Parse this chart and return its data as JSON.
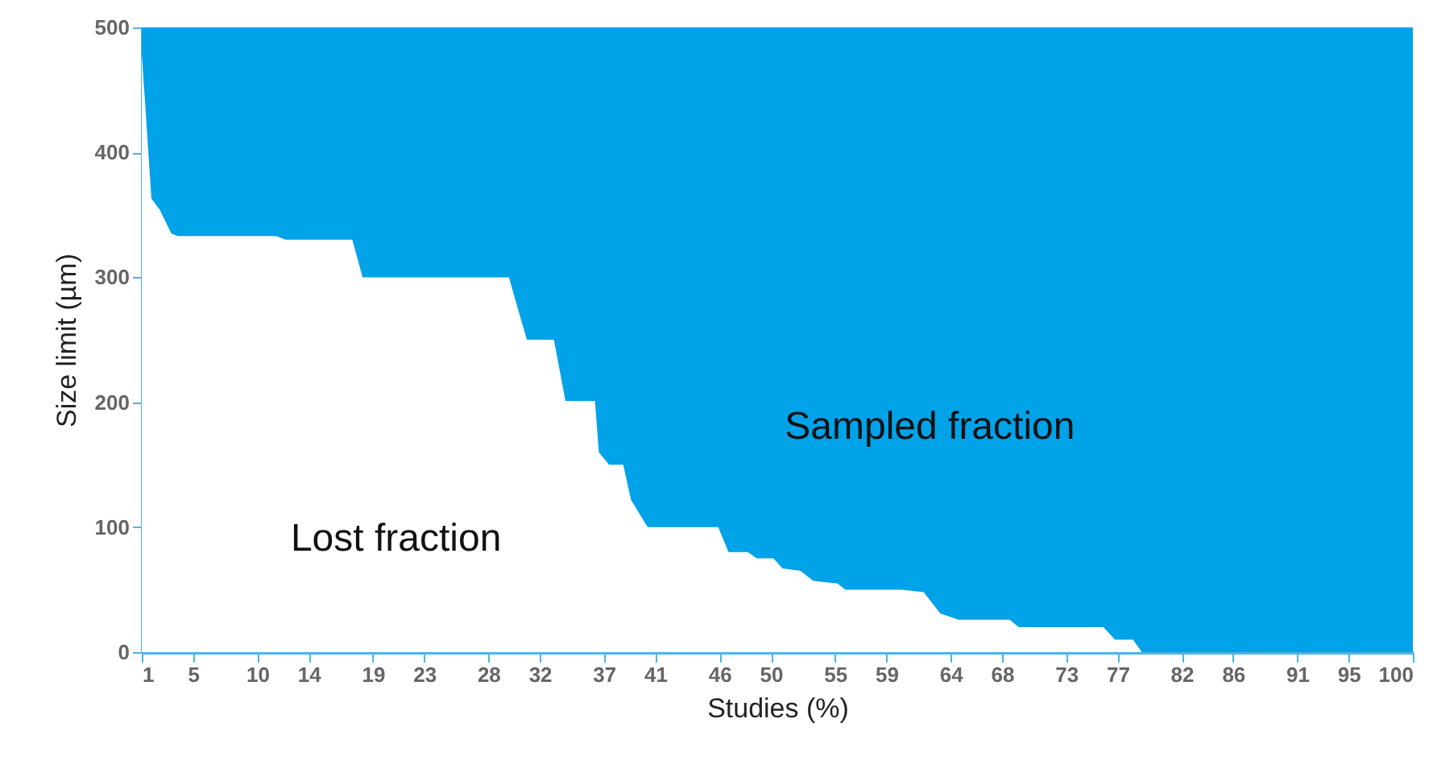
{
  "chart_data": {
    "type": "area",
    "stacked": true,
    "xlabel": "Studies (%)",
    "ylabel": "Size limit (µm)",
    "x": [
      1,
      1.75,
      2.4,
      3.3,
      3.8,
      11.5,
      12.2,
      17.4,
      18.2,
      29.6,
      30.4,
      31,
      33.1,
      34,
      36.3,
      36.6,
      37.4,
      38.5,
      39.1,
      40.4,
      45.9,
      46.7,
      48.2,
      48.9,
      50.2,
      50.9,
      52.3,
      53.3,
      55.2,
      55.8,
      60.2,
      61.9,
      63.2,
      64.6,
      68.6,
      69.3,
      75.9,
      76.8,
      78.2,
      78.9,
      100
    ],
    "series": [
      {
        "name": "Lost fraction",
        "color": "#ffffff",
        "values": [
          480,
          363,
          354,
          335,
          333,
          333,
          330,
          330,
          300,
          300,
          271,
          250,
          250,
          201,
          201,
          160,
          150,
          150,
          122,
          100,
          100,
          80,
          80,
          75,
          75,
          67,
          65,
          57,
          55,
          50,
          50,
          48,
          31,
          26,
          26,
          20,
          20,
          10,
          10,
          0,
          0
        ]
      },
      {
        "name": "Sampled fraction",
        "color": "#00a2e8",
        "values": [
          20,
          137,
          146,
          165,
          167,
          167,
          170,
          170,
          200,
          200,
          229,
          250,
          250,
          299,
          299,
          340,
          350,
          350,
          378,
          400,
          400,
          420,
          420,
          425,
          425,
          433,
          435,
          443,
          445,
          450,
          450,
          452,
          469,
          474,
          474,
          480,
          480,
          490,
          490,
          500,
          500
        ]
      }
    ],
    "xlim": [
      1,
      100
    ],
    "xticks": [
      1,
      5,
      10,
      14,
      19,
      23,
      28,
      32,
      37,
      41,
      46,
      50,
      55,
      59,
      64,
      68,
      73,
      77,
      82,
      86,
      91,
      95,
      100
    ],
    "ylim": [
      0,
      500
    ],
    "yticks": [
      0,
      100,
      200,
      300,
      400,
      500
    ],
    "grid": false
  }
}
